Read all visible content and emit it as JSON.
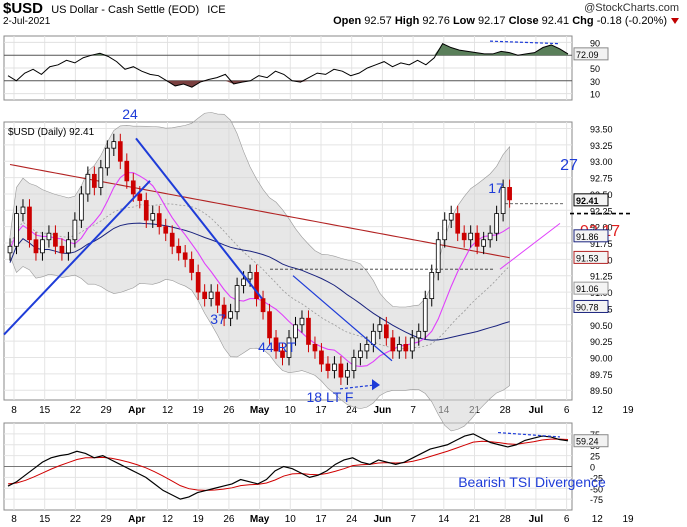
{
  "header": {
    "symbol": "$USD",
    "description": "US Dollar - Cash Settle (EOD)",
    "exchange": "ICE",
    "date": "2-Jul-2021",
    "credit": "@StockCharts.com",
    "open_label": "Open",
    "open": "92.57",
    "high_label": "High",
    "high": "92.76",
    "low_label": "Low",
    "low": "92.17",
    "close_label": "Close",
    "close": "92.41",
    "chg_label": "Chg",
    "chg": "-0.18 (-0.20%)"
  },
  "colors": {
    "up": "#000000",
    "down": "#cc0000",
    "trend": "#1e3cd8",
    "ma_red": "#b22222",
    "ma_navy": "#1a237e",
    "ma_pink": "#e040fb",
    "band": "#d3d3d3",
    "rsi_fill_hi": "#5a7f5a",
    "rsi_fill_lo": "#7a4040"
  },
  "chart_data": [
    {
      "type": "line",
      "panel": "rsi",
      "ylim": [
        0,
        100
      ],
      "yticks": [
        "90",
        "70",
        "50",
        "30",
        "10"
      ],
      "last_value": "72.09",
      "values": [
        38,
        30,
        42,
        48,
        40,
        52,
        55,
        62,
        58,
        66,
        70,
        73,
        68,
        60,
        48,
        52,
        45,
        40,
        38,
        30,
        22,
        25,
        20,
        28,
        32,
        35,
        40,
        25,
        28,
        30,
        38,
        35,
        45,
        40,
        30,
        28,
        35,
        42,
        40,
        48,
        45,
        38,
        42,
        50,
        55,
        60,
        52,
        58,
        55,
        62,
        55,
        66,
        88,
        82,
        78,
        76,
        74,
        72,
        72,
        76,
        74,
        70,
        72,
        74,
        82,
        86,
        80,
        72
      ]
    },
    {
      "type": "candlestick",
      "panel": "price",
      "label": "$USD (Daily) 92.41",
      "ylim": [
        89.35,
        93.6
      ],
      "yticks": [
        "93.50",
        "93.25",
        "93.00",
        "92.75",
        "92.50",
        "92.25",
        "92.00",
        "91.75",
        "91.50",
        "91.25",
        "91.00",
        "90.75",
        "90.50",
        "90.25",
        "90.00",
        "89.75",
        "89.50"
      ],
      "right_labels": [
        "92.41",
        "91.86",
        "91.53",
        "91.06",
        "90.78"
      ],
      "x_labels": [
        "8",
        "15",
        "22",
        "29",
        "Apr",
        "12",
        "19",
        "26",
        "May",
        "10",
        "17",
        "24",
        "Jun",
        "7",
        "14",
        "21",
        "28",
        "Jul",
        "6",
        "12",
        "19"
      ],
      "ohlc_close": [
        91.7,
        92.2,
        92.3,
        91.8,
        91.6,
        91.8,
        91.9,
        91.7,
        91.6,
        91.8,
        92.1,
        92.5,
        92.8,
        92.6,
        92.9,
        93.2,
        93.3,
        93.0,
        92.7,
        92.5,
        92.4,
        92.1,
        92.2,
        92.0,
        91.9,
        91.7,
        91.6,
        91.5,
        91.3,
        91.0,
        90.9,
        91.0,
        90.8,
        90.6,
        90.7,
        91.1,
        91.2,
        91.3,
        90.9,
        90.7,
        90.3,
        90.1,
        90.0,
        90.3,
        90.5,
        90.6,
        90.2,
        90.1,
        89.9,
        89.8,
        89.9,
        89.7,
        89.8,
        90.0,
        90.1,
        90.2,
        90.4,
        90.5,
        90.3,
        90.1,
        90.2,
        90.1,
        90.3,
        90.4,
        90.9,
        91.3,
        91.8,
        92.1,
        92.2,
        91.9,
        91.8,
        91.9,
        91.7,
        91.8,
        91.9,
        92.2,
        92.6,
        92.41
      ],
      "annotations": [
        "24",
        "37",
        "44 RT",
        "18 LT F",
        "17",
        "27",
        "92.17"
      ]
    },
    {
      "type": "line",
      "panel": "tsi",
      "ylim": [
        -100,
        100
      ],
      "yticks": [
        "75",
        "50",
        "25",
        "0",
        "-25",
        "-50",
        "-75"
      ],
      "last_value": "59.24",
      "annotation": "Bearish TSI Divergence",
      "tsi": [
        -45,
        -35,
        -20,
        -5,
        10,
        20,
        25,
        28,
        35,
        30,
        20,
        25,
        15,
        5,
        -5,
        -15,
        -25,
        -40,
        -55,
        -65,
        -75,
        -70,
        -60,
        -55,
        -50,
        -45,
        -40,
        -30,
        -35,
        -40,
        -30,
        -10,
        0,
        -5,
        -15,
        -25,
        -20,
        -10,
        5,
        15,
        20,
        10,
        5,
        15,
        10,
        5,
        10,
        20,
        30,
        40,
        45,
        50,
        60,
        70,
        75,
        65,
        55,
        50,
        45,
        50,
        60,
        65,
        70,
        68,
        62,
        59
      ],
      "signal": [
        -40,
        -38,
        -32,
        -24,
        -15,
        -6,
        2,
        9,
        16,
        20,
        20,
        21,
        19,
        15,
        10,
        4,
        -3,
        -12,
        -22,
        -33,
        -44,
        -51,
        -54,
        -55,
        -54,
        -52,
        -49,
        -44,
        -42,
        -41,
        -38,
        -31,
        -22,
        -17,
        -16,
        -18,
        -19,
        -16,
        -11,
        -5,
        2,
        4,
        5,
        8,
        9,
        8,
        9,
        12,
        17,
        23,
        29,
        35,
        42,
        49,
        56,
        58,
        57,
        55,
        52,
        51,
        54,
        57,
        61,
        63,
        63,
        62
      ]
    }
  ]
}
